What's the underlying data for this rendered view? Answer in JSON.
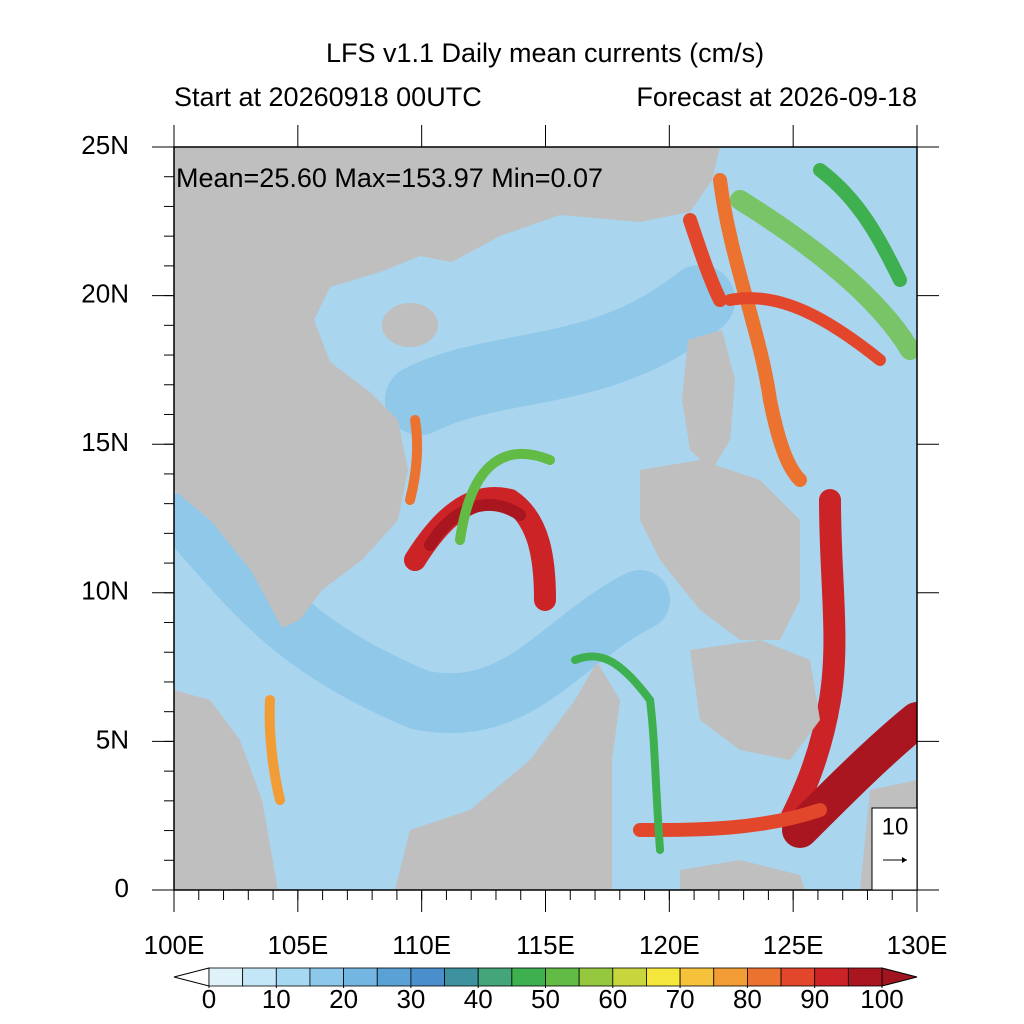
{
  "title": "LFS v1.1 Daily mean currents (cm/s)",
  "subtitle_left": "Start at 20260918 00UTC",
  "subtitle_right": "Forecast at 2026-09-18",
  "stats": "Mean=25.60  Max=153.97  Min=0.07",
  "xlim": [
    100,
    130
  ],
  "ylim": [
    0,
    25
  ],
  "lon_ticks": [
    {
      "value": 100,
      "label": "100E"
    },
    {
      "value": 105,
      "label": "105E"
    },
    {
      "value": 110,
      "label": "110E"
    },
    {
      "value": 115,
      "label": "115E"
    },
    {
      "value": 120,
      "label": "120E"
    },
    {
      "value": 125,
      "label": "125E"
    },
    {
      "value": 130,
      "label": "130E"
    }
  ],
  "lat_ticks": [
    0,
    {
      "value": 5,
      "label": "5N"
    },
    {
      "value": 10,
      "label": "10N"
    },
    {
      "value": 15,
      "label": "15N"
    },
    {
      "value": 20,
      "label": "20N"
    },
    {
      "value": 25,
      "label": "25N"
    }
  ],
  "reference_vector": "10",
  "colorbar": {
    "lim": [
      0,
      100
    ],
    "ticks": [
      0,
      10,
      20,
      30,
      40,
      50,
      60,
      70,
      80,
      90,
      100
    ],
    "colors": [
      "#dff2fa",
      "#c4e7f7",
      "#a6d8f1",
      "#8cc8ea",
      "#73b6e1",
      "#5aa2d6",
      "#4a8fcb",
      "#3e92a0",
      "#44a47a",
      "#3eb04f",
      "#62bb45",
      "#95c83f",
      "#c9d53c",
      "#f5e63b",
      "#f6c23b",
      "#f29c36",
      "#ec722f",
      "#e3472b",
      "#cc2327",
      "#a9161f"
    ],
    "under_color": "#ffffff",
    "over_color": "#a01420"
  }
}
